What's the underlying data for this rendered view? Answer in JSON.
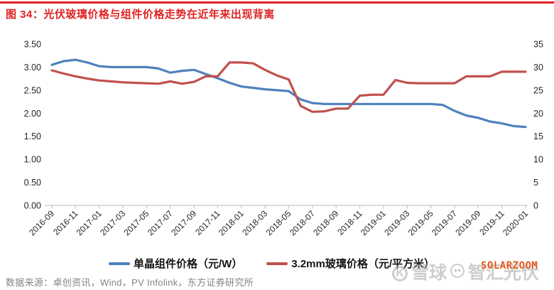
{
  "page": {
    "title": "图 34：光伏玻璃价格与组件价格走势在近年来出现背离",
    "accent_color": "#e02222"
  },
  "source_note": "数据来源：卓创资讯，Wind，PV Infolink，东方证券研究所",
  "watermark": {
    "brand": "雪球",
    "user": "智汇光伏",
    "overlay": "SOLARZOOM",
    "overlay_color": "#e8581c"
  },
  "chart_data": {
    "type": "line",
    "title": "图 34：光伏玻璃价格与组件价格走势在近年来出现背离",
    "grid": false,
    "legend_position": "bottom",
    "x": [
      "2016-09",
      "2016-10",
      "2016-11",
      "2016-12",
      "2017-01",
      "2017-02",
      "2017-03",
      "2017-04",
      "2017-05",
      "2017-06",
      "2017-07",
      "2017-08",
      "2017-09",
      "2017-10",
      "2017-11",
      "2017-12",
      "2018-01",
      "2018-02",
      "2018-03",
      "2018-04",
      "2018-05",
      "2018-06",
      "2018-07",
      "2018-08",
      "2018-09",
      "2018-10",
      "2018-11",
      "2018-12",
      "2019-01",
      "2019-02",
      "2019-03",
      "2019-04",
      "2019-05",
      "2019-06",
      "2019-07",
      "2019-08",
      "2019-09",
      "2019-10",
      "2019-11",
      "2019-12",
      "2020-01"
    ],
    "x_tick_labels": [
      "2016-09",
      "2016-11",
      "2017-01",
      "2017-03",
      "2017-05",
      "2017-07",
      "2017-09",
      "2017-11",
      "2018-01",
      "2018-03",
      "2018-05",
      "2018-07",
      "2018-09",
      "2018-11",
      "2019-01",
      "2019-03",
      "2019-05",
      "2019-07",
      "2019-09",
      "2019-11",
      "2020-01"
    ],
    "left_axis": {
      "min": 0,
      "max": 3.5,
      "ticks": [
        "0.00",
        "0.50",
        "1.00",
        "1.50",
        "2.00",
        "2.50",
        "3.00",
        "3.50"
      ]
    },
    "right_axis": {
      "min": 0,
      "max": 35,
      "ticks": [
        "0",
        "5",
        "10",
        "15",
        "20",
        "25",
        "30",
        "35"
      ]
    },
    "series": [
      {
        "name": "单晶组件价格（元/W）",
        "slug": "mono-module-price-line",
        "axis": "left",
        "color": "#4f81bd",
        "values": [
          3.05,
          3.13,
          3.16,
          3.1,
          3.02,
          3.0,
          3.0,
          3.0,
          3.0,
          2.97,
          2.88,
          2.92,
          2.94,
          2.85,
          2.76,
          2.66,
          2.58,
          2.55,
          2.52,
          2.5,
          2.48,
          2.3,
          2.22,
          2.2,
          2.2,
          2.2,
          2.2,
          2.2,
          2.2,
          2.2,
          2.2,
          2.2,
          2.2,
          2.18,
          2.05,
          1.95,
          1.9,
          1.82,
          1.78,
          1.72,
          1.7
        ]
      },
      {
        "name": "3.2mm玻璃价格（元/平方米）",
        "slug": "glass-price-line",
        "axis": "right",
        "color": "#c0504d",
        "values": [
          29.3,
          28.6,
          28.0,
          27.5,
          27.1,
          26.9,
          26.7,
          26.6,
          26.5,
          26.4,
          26.9,
          26.4,
          26.8,
          28.0,
          28.0,
          31.0,
          31.0,
          30.8,
          29.4,
          28.2,
          27.3,
          21.6,
          20.3,
          20.4,
          21.0,
          21.0,
          23.8,
          24.0,
          24.0,
          27.2,
          26.6,
          26.5,
          26.5,
          26.5,
          26.5,
          28.0,
          28.0,
          28.0,
          29.0,
          29.0,
          29.0
        ]
      }
    ]
  }
}
